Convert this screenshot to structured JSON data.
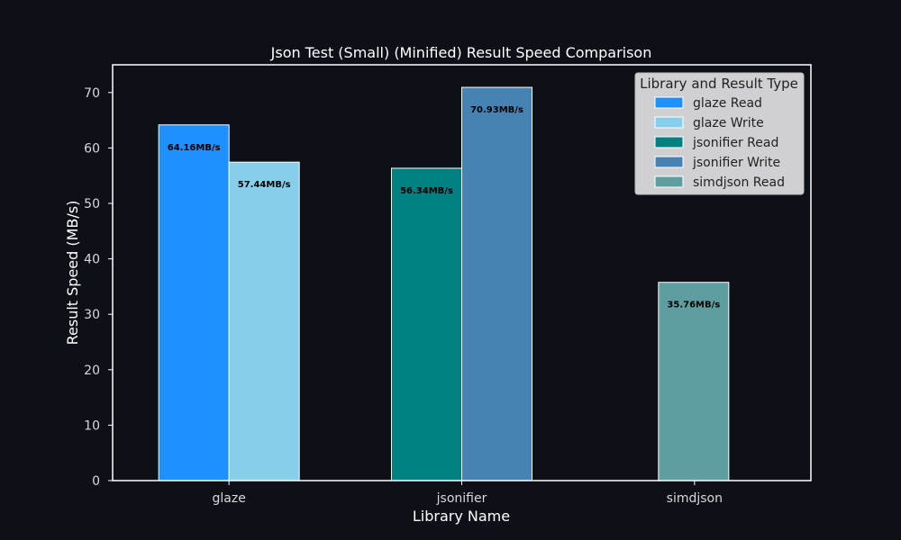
{
  "chart_data": {
    "type": "bar",
    "title": "Json Test (Small) (Minified) Result Speed Comparison",
    "xlabel": "Library Name",
    "ylabel": "Result Speed (MB/s)",
    "ylim": [
      0,
      75
    ],
    "yticks": [
      0,
      10,
      20,
      30,
      40,
      50,
      60,
      70
    ],
    "categories": [
      "glaze",
      "jsonifier",
      "simdjson"
    ],
    "series": [
      {
        "name": "glaze Read",
        "category": "glaze",
        "value": 64.16,
        "label": "64.16MB/s",
        "color": "#1e90ff"
      },
      {
        "name": "glaze Write",
        "category": "glaze",
        "value": 57.44,
        "label": "57.44MB/s",
        "color": "#87ceeb"
      },
      {
        "name": "jsonifier Read",
        "category": "jsonifier",
        "value": 56.34,
        "label": "56.34MB/s",
        "color": "#008080"
      },
      {
        "name": "jsonifier Write",
        "category": "jsonifier",
        "value": 70.93,
        "label": "70.93MB/s",
        "color": "#4682b4"
      },
      {
        "name": "simdjson Read",
        "category": "simdjson",
        "value": 35.76,
        "label": "35.76MB/s",
        "color": "#5f9ea0"
      }
    ],
    "legend": {
      "title": "Library and Result Type",
      "placement": "top-right"
    },
    "grid": false,
    "colors": {
      "background": "#0d1117",
      "axes": "#ffffff",
      "text": "#ffffff"
    }
  }
}
